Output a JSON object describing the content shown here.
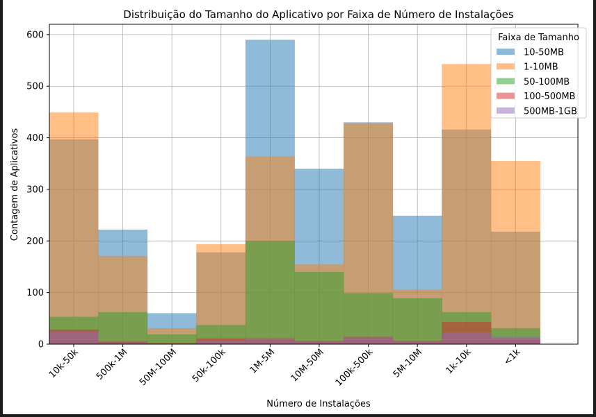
{
  "chart_data": {
    "type": "bar",
    "title": "Distribuição do Tamanho do Aplicativo por Faixa de Número de Instalações",
    "xlabel": "Número de Instalações",
    "ylabel": "Contagem de Aplicativos",
    "categories": [
      "10k-50k",
      "500k-1M",
      "50M-100M",
      "50k-100k",
      "1M-5M",
      "10M-50M",
      "100k-500k",
      "5M-10M",
      "1k-10k",
      "<1k"
    ],
    "ylim": [
      0,
      620
    ],
    "yticks": [
      0,
      100,
      200,
      300,
      400,
      500,
      600
    ],
    "grid": true,
    "overlapping_translucent_bars": true,
    "bar_alpha": 0.5,
    "legend": {
      "title": "Faixa de Tamanho",
      "placement": "top-right"
    },
    "series": [
      {
        "name": "10-50MB",
        "color": "#1f77b4",
        "values": [
          397,
          222,
          60,
          178,
          590,
          340,
          430,
          249,
          416,
          218
        ]
      },
      {
        "name": "1-10MB",
        "color": "#ff7f0e",
        "values": [
          449,
          171,
          31,
          194,
          364,
          155,
          428,
          106,
          543,
          355
        ]
      },
      {
        "name": "50-100MB",
        "color": "#2ca02c",
        "values": [
          53,
          62,
          19,
          37,
          200,
          140,
          99,
          89,
          62,
          31
        ]
      },
      {
        "name": "100-500MB",
        "color": "#d62728",
        "values": [
          28,
          5,
          2,
          11,
          11,
          6,
          14,
          6,
          43,
          11
        ]
      },
      {
        "name": "500MB-1GB",
        "color": "#9467bd",
        "values": [
          24,
          3,
          1,
          7,
          10,
          5,
          13,
          5,
          23,
          15
        ]
      }
    ]
  }
}
